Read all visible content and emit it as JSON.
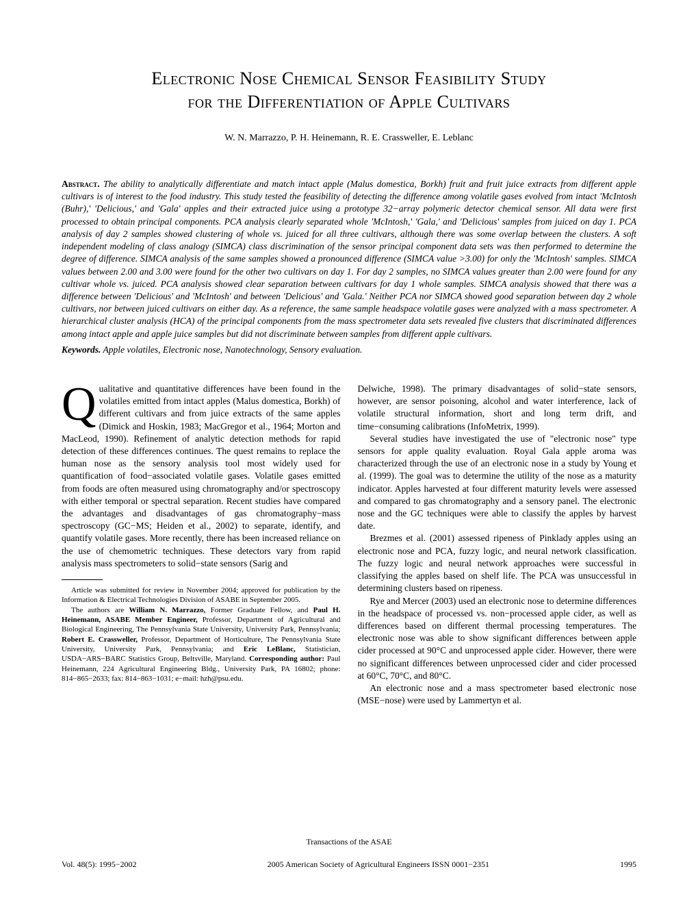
{
  "title_line1": "Electronic Nose Chemical Sensor Feasibility Study",
  "title_line2": "for the Differentiation of Apple Cultivars",
  "authors": "W. N. Marrazzo,  P. H. Heinemann,  R. E. Crassweller,  E. Leblanc",
  "abstract_label": "Abstract.",
  "abstract_text": " The ability to analytically differentiate and match intact apple (Malus domestica, Borkh) fruit and fruit juice extracts from different apple cultivars is of interest to the food industry. This study tested the feasibility of detecting the difference among volatile gases evolved from intact 'McIntosh (Buhr),' 'Delicious,' and 'Gala' apples and their extracted juice using a prototype 32−array polymeric detector chemical sensor. All data were first processed to obtain principal components. PCA analysis clearly separated whole 'McIntosh,' 'Gala,' and 'Delicious' samples from juiced on day 1. PCA analysis of day 2 samples showed clustering of whole vs. juiced for all three cultivars, although there was some overlap between the clusters. A soft independent modeling of class analogy (SIMCA) class discrimination of the sensor principal component data sets was then performed to determine the degree of difference. SIMCA analysis of the same samples showed a pronounced difference (SIMCA value >3.00) for only the 'McIntosh' samples. SIMCA values between 2.00 and 3.00 were found for the other two cultivars on day 1. For day 2 samples, no SIMCA values greater than 2.00 were found for any cultivar whole vs. juiced. PCA analysis showed clear separation between cultivars for day 1 whole samples. SIMCA analysis showed that there was a difference between 'Delicious' and 'McIntosh' and between 'Delicious' and 'Gala.' Neither PCA nor SIMCA showed good separation between day 2 whole cultivars, nor between juiced cultivars on either day. As a reference, the same sample headspace volatile gases were analyzed with a mass spectrometer. A hierarchical cluster analysis (HCA) of the principal components from the mass spectrometer data sets revealed five clusters that discriminated differences among intact apple and apple juice samples but did not discriminate between samples from different apple cultivars.",
  "keywords_label": "Keywords.",
  "keywords_text": " Apple volatiles, Electronic nose, Nanotechnology, Sensory evaluation.",
  "body": {
    "col1_p1_dropcap": "Q",
    "col1_p1": "ualitative and quantitative differences have been found in the volatiles emitted from intact apples (Malus domestica, Borkh) of different cultivars and from juice extracts of the same apples (Dimick and Hoskin, 1983; MacGregor et al., 1964; Morton and MacLeod, 1990). Refinement of analytic detection methods for rapid detection of these differences continues. The quest remains to replace the human nose as the sensory analysis tool most widely used for quantification of food−associated volatile gases. Volatile gases emitted from foods are often measured using chromatography and/or spectroscopy with either temporal or spectral separation. Recent studies have compared the advantages and disadvantages of gas chromatography−mass spectroscopy (GC−MS; Heiden et al., 2002) to separate, identify, and quantify volatile gases. More recently, there has been increased reliance on the use of chemometric techniques. These detectors vary from rapid analysis mass spectrometers to solid−state sensors (Sarig and",
    "col2_p1": "Delwiche, 1998). The primary disadvantages of solid−state sensors, however, are sensor poisoning, alcohol and water interference, lack of volatile structural information, short and long term drift, and time−consuming calibrations (InfoMetrix, 1999).",
    "col2_p2": "Several studies have investigated the use of \"electronic nose\" type sensors for apple quality evaluation. Royal Gala apple aroma was characterized through the use of an electronic nose in a study by Young et al. (1999). The goal was to determine the utility of the nose as a maturity indicator. Apples harvested at four different maturity levels were assessed and compared to gas chromatography and a sensory panel. The electronic nose and the GC techniques were able to classify the apples by harvest date.",
    "col2_p3": "Brezmes et al. (2001) assessed ripeness of Pinklady apples using an electronic nose and PCA, fuzzy logic, and neural network classification. The fuzzy logic and neural network approaches were successful in classifying the apples based on shelf life. The PCA was unsuccessful in determining clusters based on ripeness.",
    "col2_p4": "Rye and Mercer (2003) used an electronic nose to determine differences in the headspace of processed vs. non−processed apple cider, as well as differences based on different thermal processing temperatures. The electronic nose was able to show significant differences between apple cider processed at 90°C and unprocessed apple cider. However, there were no significant differences between unprocessed cider and cider processed at 60°C, 70°C, and 80°C.",
    "col2_p5": "An electronic nose and a mass spectrometer based electronic nose (MSE−nose) were used by Lammertyn et al."
  },
  "footnote": {
    "p1": "Article was submitted for review in November 2004; approved for publication by the Information & Electrical Technologies Division of ASABE in September 2005.",
    "p2_pre": "The authors are ",
    "p2_a1": "William N. Marrazzo,",
    "p2_t1": " Former Graduate Fellow, and ",
    "p2_a2": "Paul H. Heinemann, ASABE Member Engineer,",
    "p2_t2": " Professor, Department of Agricultural and Biological Engineering, The Pennsylvania State University, University Park, Pennsylvania; ",
    "p2_a3": "Robert E. Crassweller,",
    "p2_t3": " Professor, Department of Horticulture, The Pennsylvania State University, University Park, Pennsylvania; and ",
    "p2_a4": "Eric LeBlanc,",
    "p2_t4": " Statistician, USDA−ARS−BARC Statistics Group, Beltsville, Maryland. ",
    "p2_a5": "Corresponding author:",
    "p2_t5": " Paul Heinemann, 224 Agricultural Engineering Bldg., University Park, PA 16802; phone: 814−865−2633; fax: 814−863−1031; e−mail: hzh@psu.edu."
  },
  "footer": {
    "journal": "Transactions of the ASAE",
    "vol": "Vol. 48(5): 1995−2002",
    "copyright": "2005 American Society of Agricultural Engineers ISSN 0001−2351",
    "page": "1995"
  }
}
